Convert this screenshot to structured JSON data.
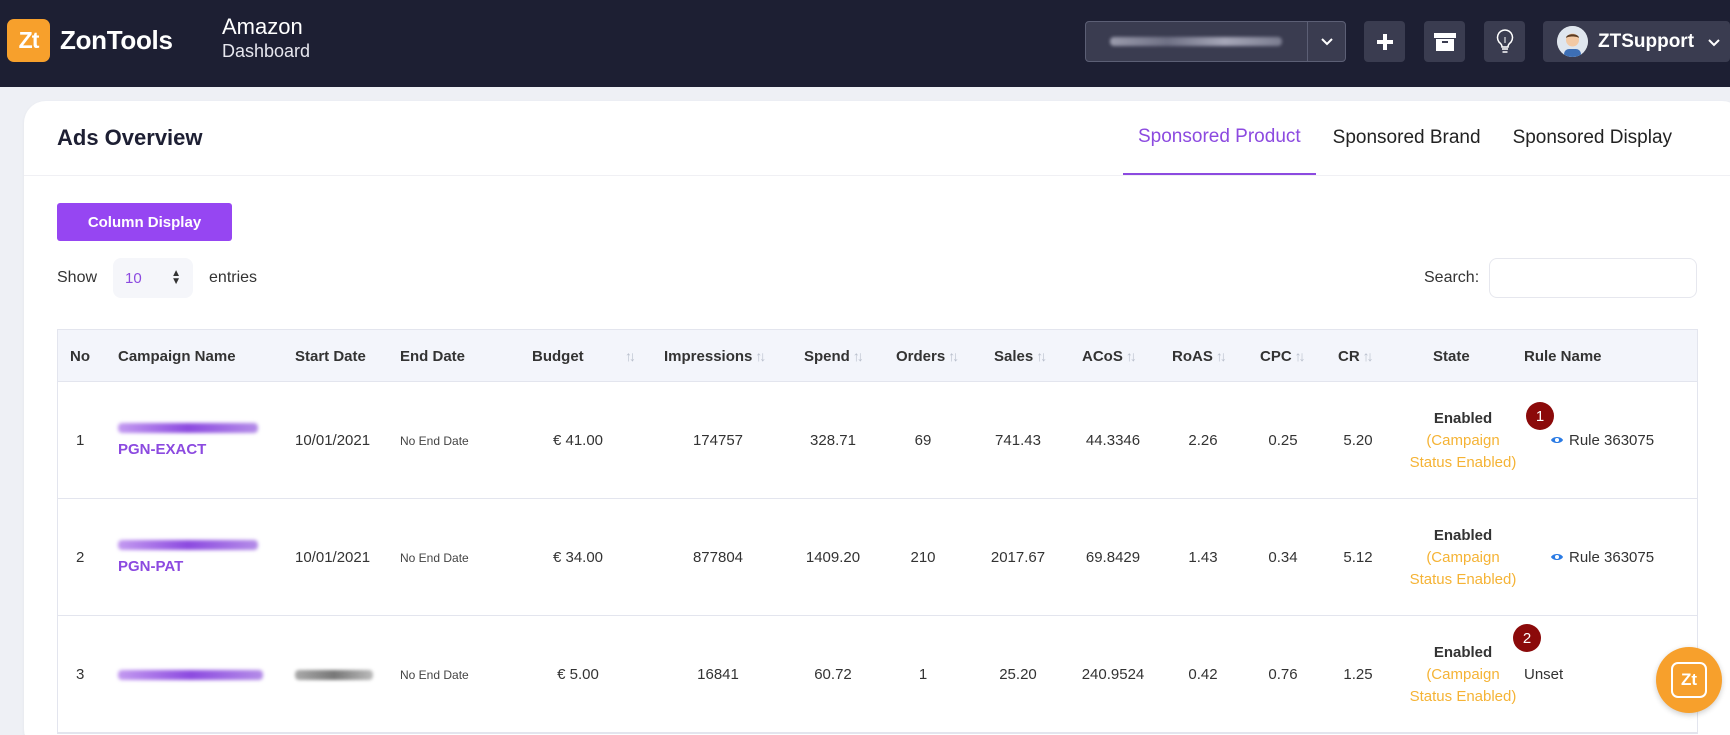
{
  "header": {
    "logo_mark": "Zt",
    "logo_text": "ZonTools",
    "app_title": "Amazon",
    "app_subtitle": "Dashboard",
    "user_name": "ZTSupport"
  },
  "card": {
    "title": "Ads Overview",
    "tabs": [
      {
        "label": "Sponsored Product",
        "active": true
      },
      {
        "label": "Sponsored Brand",
        "active": false
      },
      {
        "label": "Sponsored Display",
        "active": false
      }
    ],
    "column_display_label": "Column Display",
    "show_label": "Show",
    "entries_value": "10",
    "entries_label": "entries",
    "search_label": "Search:"
  },
  "table": {
    "headers": [
      "No",
      "Campaign Name",
      "Start Date",
      "End Date",
      "Budget",
      "Impressions",
      "Spend",
      "Orders",
      "Sales",
      "ACoS",
      "RoAS",
      "CPC",
      "CR",
      "State",
      "Rule Name"
    ],
    "rows": [
      {
        "no": "1",
        "campaign_suffix": "PGN-EXACT",
        "start": "10/01/2021",
        "end": "No End Date",
        "budget": "€ 41.00",
        "impressions": "174757",
        "spend": "328.71",
        "orders": "69",
        "sales": "741.43",
        "acos": "44.3346",
        "roas": "2.26",
        "cpc": "0.25",
        "cr": "5.20",
        "state": "Enabled",
        "state_sub": "(Campaign Status Enabled)",
        "rule": "Rule 363075"
      },
      {
        "no": "2",
        "campaign_suffix": "PGN-PAT",
        "start": "10/01/2021",
        "end": "No End Date",
        "budget": "€ 34.00",
        "impressions": "877804",
        "spend": "1409.20",
        "orders": "210",
        "sales": "2017.67",
        "acos": "69.8429",
        "roas": "1.43",
        "cpc": "0.34",
        "cr": "5.12",
        "state": "Enabled",
        "state_sub": "(Campaign Status Enabled)",
        "rule": "Rule 363075"
      },
      {
        "no": "3",
        "campaign_suffix": "",
        "start": "",
        "end": "No End Date",
        "budget": "€ 5.00",
        "impressions": "16841",
        "spend": "60.72",
        "orders": "1",
        "sales": "25.20",
        "acos": "240.9524",
        "roas": "0.42",
        "cpc": "0.76",
        "cr": "1.25",
        "state": "Enabled",
        "state_sub": "(Campaign Status Enabled)",
        "rule": "Unset"
      }
    ]
  },
  "badges": [
    "1",
    "2"
  ],
  "colors": {
    "accent": "#8c4ae0",
    "brand_orange": "#f7a02c",
    "header_bg": "#1d1f33",
    "state_sub": "#f5b335",
    "badge": "#8b0a0a"
  },
  "icons": [
    "plus-icon",
    "archive-icon",
    "lightbulb-icon",
    "chevron-down-icon",
    "eye-icon",
    "chat-icon"
  ]
}
